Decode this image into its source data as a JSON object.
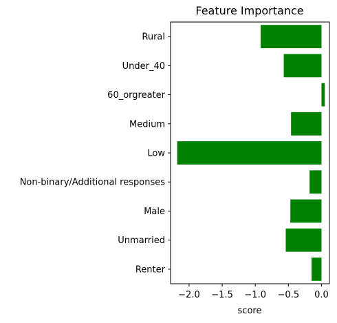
{
  "chart_data": {
    "type": "bar",
    "orientation": "horizontal",
    "title": "Feature Importance",
    "xlabel": "score",
    "ylabel": "",
    "xlim": [
      -2.28,
      0.12
    ],
    "x_ticks": [
      -2.0,
      -1.5,
      -1.0,
      -0.5,
      0.0
    ],
    "x_tick_labels": [
      "−2.0",
      "−1.5",
      "−1.0",
      "−0.5",
      "0.0"
    ],
    "categories": [
      "Rural",
      "Under_40",
      "60_orgreater",
      "Medium",
      "Low",
      "Non-binary/Additional responses",
      "Male",
      "Unmarried",
      "Renter"
    ],
    "values": [
      -0.92,
      -0.57,
      0.05,
      -0.46,
      -2.18,
      -0.18,
      -0.47,
      -0.54,
      -0.15
    ],
    "bar_color": "#008000",
    "grid": false,
    "legend": "none"
  }
}
